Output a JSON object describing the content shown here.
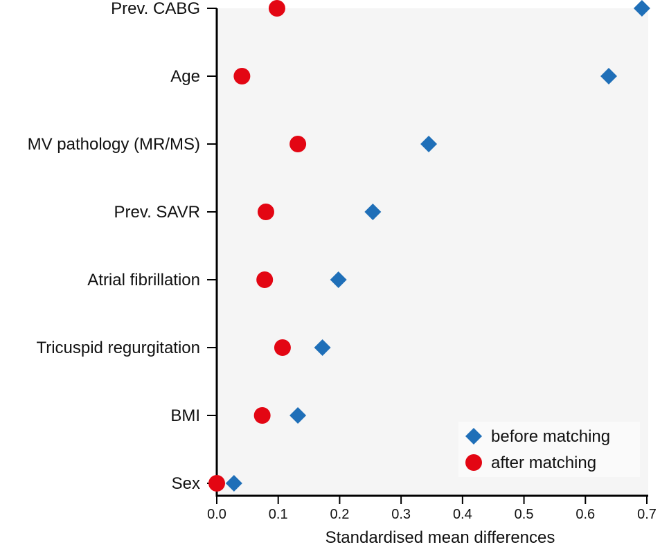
{
  "chart_data": {
    "type": "scatter",
    "title": "",
    "xlabel": "Standardised mean differences",
    "ylabel": "",
    "xlim": [
      0,
      0.7
    ],
    "xticks": [
      "0.0",
      "0.1",
      "0.2",
      "0.3",
      "0.4",
      "0.5",
      "0.6",
      "0.7"
    ],
    "categories": [
      "Prev. CABG",
      "Age",
      "MV pathology (MR/MS)",
      "Prev. SAVR",
      "Atrial fibrillation",
      "Tricuspid regurgitation",
      "BMI",
      "Sex"
    ],
    "series": [
      {
        "name": "before matching",
        "marker": "diamond",
        "color": "#1f6fb8",
        "values": [
          0.692,
          0.638,
          0.345,
          0.254,
          0.198,
          0.172,
          0.132,
          0.028
        ]
      },
      {
        "name": "after matching",
        "marker": "circle",
        "color": "#e30613",
        "values": [
          0.098,
          0.041,
          0.132,
          0.08,
          0.078,
          0.107,
          0.074,
          0.0
        ]
      }
    ],
    "legend": {
      "position": "bottom-right"
    },
    "grid": false,
    "plot_background": "#f5f5f5"
  }
}
